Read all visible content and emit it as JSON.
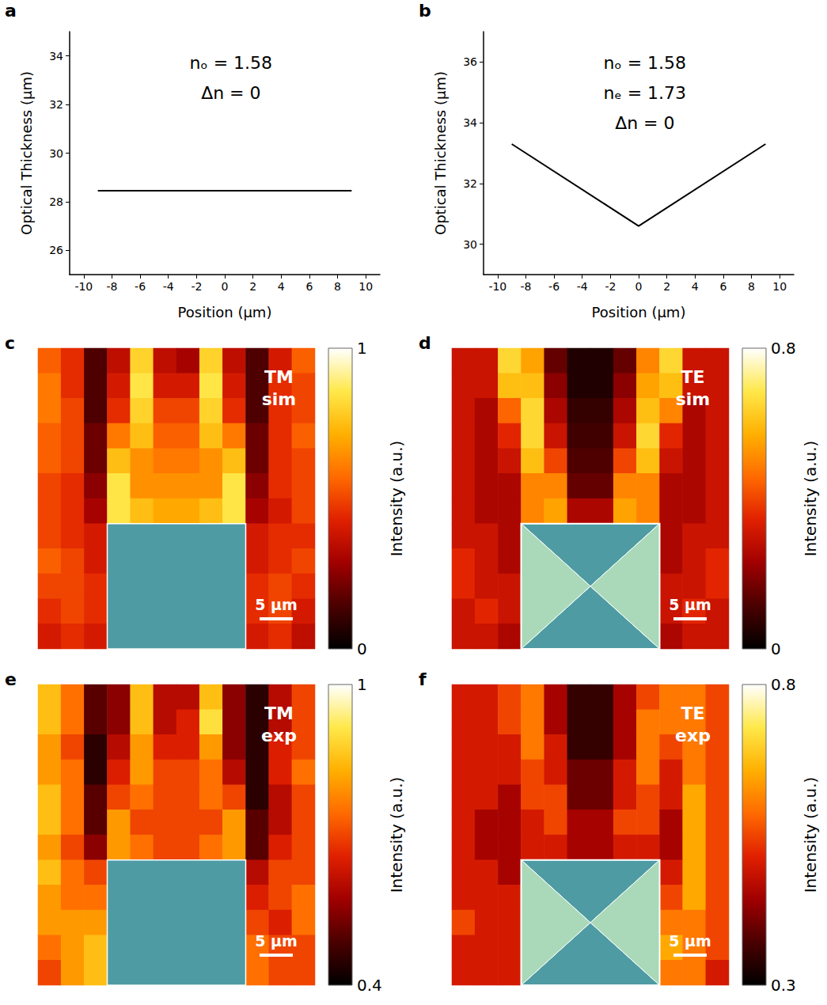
{
  "chart_data": [
    {
      "panel": "a",
      "type": "line",
      "x": [
        -9,
        9
      ],
      "values": [
        28.45,
        28.45
      ],
      "color": "#000000",
      "x_label": "Position (μm)",
      "y_label": "Optical Thickness (μm)",
      "xlim": [
        -11,
        11
      ],
      "xticks": [
        -10,
        -8,
        -6,
        -4,
        -2,
        0,
        2,
        4,
        6,
        8,
        10
      ],
      "ylim": [
        25,
        35
      ],
      "yticks": [
        26,
        28,
        30,
        32,
        34
      ],
      "annotations": [
        "nₒ = 1.58",
        "Δn = 0"
      ]
    },
    {
      "panel": "b",
      "type": "line",
      "x": [
        -9,
        0,
        9
      ],
      "values": [
        33.3,
        30.6,
        33.3
      ],
      "color": "#000000",
      "x_label": "Position (μm)",
      "y_label": "Optical Thickness (μm)",
      "xlim": [
        -11,
        11
      ],
      "xticks": [
        -10,
        -8,
        -6,
        -4,
        -2,
        0,
        2,
        4,
        6,
        8,
        10
      ],
      "ylim": [
        29,
        37
      ],
      "yticks": [
        30,
        32,
        34,
        36
      ],
      "annotations": [
        "nₒ = 1.58",
        "nₑ = 1.73",
        "Δn = 0"
      ]
    },
    {
      "panel": "c",
      "type": "heatmap",
      "title": "TM sim",
      "tick_labels": false,
      "annotations": [
        "5 μm"
      ],
      "colorbar": {
        "label": "Intensity (a.u.)",
        "range": [
          0,
          1
        ],
        "ticks": [
          0,
          1
        ]
      },
      "cells": [
        [
          0.55,
          0.45,
          0.15,
          0.35,
          0.8,
          0.35,
          0.3,
          0.8,
          0.35,
          0.15,
          0.4,
          0.55
        ],
        [
          0.6,
          0.45,
          0.15,
          0.4,
          0.85,
          0.4,
          0.4,
          0.85,
          0.4,
          0.15,
          0.45,
          0.5
        ],
        [
          0.6,
          0.5,
          0.15,
          0.45,
          0.8,
          0.5,
          0.5,
          0.8,
          0.45,
          0.15,
          0.45,
          0.5
        ],
        [
          0.55,
          0.5,
          0.2,
          0.6,
          0.75,
          0.55,
          0.55,
          0.75,
          0.6,
          0.2,
          0.45,
          0.55
        ],
        [
          0.55,
          0.5,
          0.2,
          0.75,
          0.65,
          0.6,
          0.6,
          0.65,
          0.75,
          0.2,
          0.45,
          0.5
        ],
        [
          0.5,
          0.45,
          0.25,
          0.85,
          0.65,
          0.65,
          0.65,
          0.65,
          0.85,
          0.25,
          0.45,
          0.5
        ],
        [
          0.5,
          0.45,
          0.3,
          0.85,
          0.75,
          0.7,
          0.7,
          0.75,
          0.85,
          0.3,
          0.4,
          0.5
        ],
        [
          0.5,
          0.45,
          0.4,
          null,
          null,
          null,
          null,
          null,
          null,
          0.4,
          0.45,
          0.45
        ],
        [
          0.55,
          0.5,
          0.4,
          null,
          null,
          null,
          null,
          null,
          null,
          0.4,
          0.45,
          0.5
        ],
        [
          0.5,
          0.5,
          0.45,
          null,
          null,
          null,
          null,
          null,
          null,
          0.45,
          0.5,
          0.45
        ],
        [
          0.45,
          0.5,
          0.45,
          null,
          null,
          null,
          null,
          null,
          null,
          0.45,
          0.5,
          0.4
        ],
        [
          0.4,
          0.45,
          0.4,
          null,
          null,
          null,
          null,
          null,
          null,
          0.4,
          0.45,
          0.35
        ]
      ]
    },
    {
      "panel": "d",
      "type": "heatmap",
      "title": "TE sim",
      "tick_labels": false,
      "annotations": [
        "5 μm"
      ],
      "colorbar": {
        "label": "Intensity (a.u.)",
        "range": [
          0,
          0.8
        ],
        "ticks": [
          0,
          0.8
        ]
      },
      "cells": [
        [
          0.3,
          0.3,
          0.65,
          0.55,
          0.15,
          0.05,
          0.05,
          0.15,
          0.5,
          0.65,
          0.3,
          0.3
        ],
        [
          0.3,
          0.3,
          0.6,
          0.6,
          0.2,
          0.05,
          0.05,
          0.2,
          0.55,
          0.6,
          0.3,
          0.3
        ],
        [
          0.3,
          0.25,
          0.45,
          0.65,
          0.25,
          0.08,
          0.08,
          0.25,
          0.6,
          0.5,
          0.25,
          0.3
        ],
        [
          0.3,
          0.25,
          0.35,
          0.65,
          0.3,
          0.1,
          0.1,
          0.3,
          0.65,
          0.35,
          0.25,
          0.3
        ],
        [
          0.3,
          0.25,
          0.3,
          0.6,
          0.4,
          0.12,
          0.12,
          0.4,
          0.6,
          0.3,
          0.25,
          0.3
        ],
        [
          0.3,
          0.25,
          0.25,
          0.5,
          0.5,
          0.15,
          0.15,
          0.5,
          0.5,
          0.25,
          0.25,
          0.3
        ],
        [
          0.3,
          0.25,
          0.25,
          0.5,
          0.55,
          0.25,
          0.25,
          0.55,
          0.5,
          0.25,
          0.25,
          0.3
        ],
        [
          0.3,
          0.3,
          0.25,
          null,
          null,
          null,
          null,
          null,
          null,
          0.25,
          0.3,
          0.3
        ],
        [
          0.35,
          0.3,
          0.25,
          null,
          null,
          null,
          null,
          null,
          null,
          0.25,
          0.3,
          0.35
        ],
        [
          0.35,
          0.3,
          0.3,
          null,
          null,
          null,
          null,
          null,
          null,
          0.3,
          0.3,
          0.35
        ],
        [
          0.3,
          0.35,
          0.3,
          null,
          null,
          null,
          null,
          null,
          null,
          0.3,
          0.35,
          0.3
        ],
        [
          0.3,
          0.3,
          0.25,
          null,
          null,
          null,
          null,
          null,
          null,
          0.25,
          0.3,
          0.3
        ]
      ]
    },
    {
      "panel": "e",
      "type": "heatmap",
      "title": "TM exp",
      "tick_labels": false,
      "annotations": [
        "5 μm"
      ],
      "colorbar": {
        "label": "Intensity (a.u.)",
        "range": [
          0.4,
          1
        ],
        "ticks": [
          0.4,
          1
        ]
      },
      "cells": [
        [
          0.85,
          0.75,
          0.5,
          0.55,
          0.85,
          0.6,
          0.6,
          0.85,
          0.55,
          0.45,
          0.6,
          0.7
        ],
        [
          0.85,
          0.75,
          0.5,
          0.55,
          0.85,
          0.6,
          0.65,
          0.9,
          0.55,
          0.45,
          0.6,
          0.7
        ],
        [
          0.8,
          0.7,
          0.45,
          0.6,
          0.8,
          0.65,
          0.65,
          0.8,
          0.55,
          0.45,
          0.65,
          0.7
        ],
        [
          0.8,
          0.75,
          0.45,
          0.65,
          0.8,
          0.7,
          0.7,
          0.75,
          0.6,
          0.45,
          0.65,
          0.75
        ],
        [
          0.85,
          0.75,
          0.5,
          0.7,
          0.75,
          0.7,
          0.7,
          0.75,
          0.7,
          0.45,
          0.6,
          0.7
        ],
        [
          0.85,
          0.75,
          0.5,
          0.8,
          0.7,
          0.7,
          0.7,
          0.7,
          0.8,
          0.5,
          0.6,
          0.7
        ],
        [
          0.8,
          0.7,
          0.55,
          0.8,
          0.75,
          0.7,
          0.7,
          0.75,
          0.8,
          0.5,
          0.65,
          0.7
        ],
        [
          0.85,
          0.75,
          0.7,
          null,
          null,
          null,
          null,
          null,
          null,
          0.6,
          0.7,
          0.7
        ],
        [
          0.8,
          0.75,
          0.75,
          null,
          null,
          null,
          null,
          null,
          null,
          0.65,
          0.7,
          0.75
        ],
        [
          0.8,
          0.8,
          0.8,
          null,
          null,
          null,
          null,
          null,
          null,
          0.7,
          0.65,
          0.75
        ],
        [
          0.75,
          0.8,
          0.85,
          null,
          null,
          null,
          null,
          null,
          null,
          0.75,
          0.7,
          0.7
        ],
        [
          0.7,
          0.8,
          0.85,
          null,
          null,
          null,
          null,
          null,
          null,
          0.75,
          0.7,
          0.7
        ]
      ]
    },
    {
      "panel": "f",
      "type": "heatmap",
      "title": "TE exp",
      "tick_labels": false,
      "annotations": [
        "5 μm"
      ],
      "colorbar": {
        "label": "Intensity (a.u.)",
        "range": [
          0.3,
          0.8
        ],
        "ticks": [
          0.3,
          0.8
        ]
      },
      "cells": [
        [
          0.5,
          0.5,
          0.55,
          0.6,
          0.45,
          0.35,
          0.35,
          0.45,
          0.55,
          0.6,
          0.6,
          0.55
        ],
        [
          0.5,
          0.5,
          0.55,
          0.6,
          0.45,
          0.35,
          0.35,
          0.45,
          0.6,
          0.6,
          0.6,
          0.55
        ],
        [
          0.5,
          0.5,
          0.5,
          0.6,
          0.5,
          0.35,
          0.35,
          0.45,
          0.6,
          0.55,
          0.6,
          0.55
        ],
        [
          0.5,
          0.5,
          0.5,
          0.55,
          0.5,
          0.4,
          0.4,
          0.5,
          0.6,
          0.5,
          0.6,
          0.55
        ],
        [
          0.5,
          0.5,
          0.45,
          0.55,
          0.55,
          0.4,
          0.4,
          0.5,
          0.55,
          0.5,
          0.65,
          0.55
        ],
        [
          0.5,
          0.45,
          0.45,
          0.5,
          0.55,
          0.45,
          0.45,
          0.55,
          0.55,
          0.45,
          0.65,
          0.55
        ],
        [
          0.5,
          0.45,
          0.45,
          0.5,
          0.5,
          0.45,
          0.45,
          0.5,
          0.5,
          0.45,
          0.65,
          0.55
        ],
        [
          0.5,
          0.5,
          0.45,
          null,
          null,
          null,
          null,
          null,
          null,
          0.5,
          0.65,
          0.55
        ],
        [
          0.5,
          0.5,
          0.5,
          null,
          null,
          null,
          null,
          null,
          null,
          0.55,
          0.65,
          0.55
        ],
        [
          0.55,
          0.5,
          0.5,
          null,
          null,
          null,
          null,
          null,
          null,
          0.6,
          0.6,
          0.55
        ],
        [
          0.5,
          0.5,
          0.5,
          null,
          null,
          null,
          null,
          null,
          null,
          0.65,
          0.6,
          0.55
        ],
        [
          0.5,
          0.5,
          0.5,
          null,
          null,
          null,
          null,
          null,
          null,
          0.6,
          0.6,
          0.5
        ]
      ]
    }
  ]
}
